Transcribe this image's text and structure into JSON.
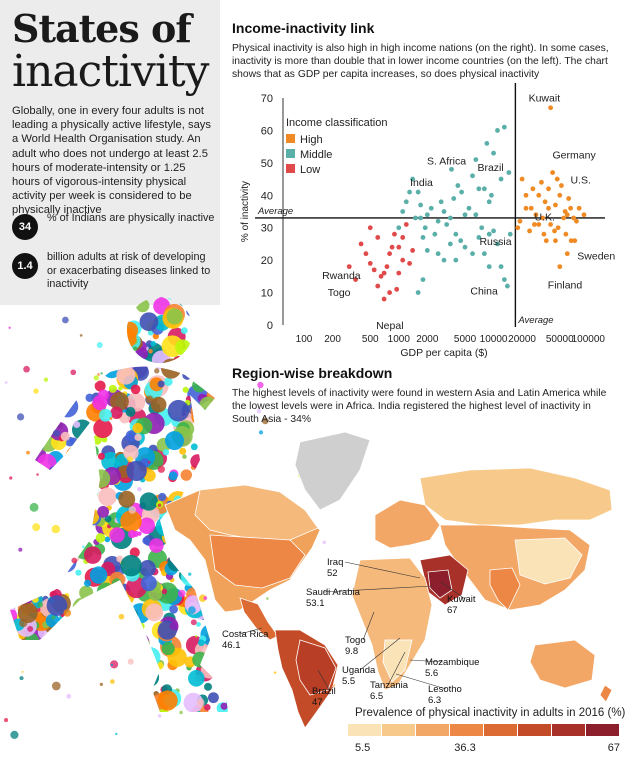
{
  "header": {
    "title_line1": "States of",
    "title_line2": "inactivity"
  },
  "intro": "Globally, one in every four adults is not leading a physically active lifestyle, says a World Health Organisation study. An adult who does not undergo at least 2.5 hours of moderate-intensity or 1.25 hours of vigorous-intensity physical activity per week is considered to be physically inactive",
  "stats": [
    {
      "value": "34",
      "text": "% of Indians are physically inactive"
    },
    {
      "value": "1.4",
      "text": "billion adults at risk of developing or exacerbating diseases linked to inactivity"
    }
  ],
  "income": {
    "title": "Income-inactivity link",
    "subtitle": "Physical inactivity is also high in high income nations (on the right). In some cases, inactivity is more than double that in lower income countries (on the left). The chart shows that as GDP per capita increases, so does physical inactivity"
  },
  "region": {
    "title": "Region-wise breakdown",
    "subtitle": "The highest levels of inactivity were found in western Asia and Latin America while the lowest levels were in Africa. India registered the highest level of inactivity in South Asia - 34%",
    "legend_title": "Prevalence of physical inactivity in adults in 2016 (%)",
    "legend_ticks": [
      "5.5",
      "36.3",
      "67"
    ],
    "legend_colors": [
      "#fbe3b8",
      "#f7c98b",
      "#f3a766",
      "#ec8746",
      "#dc6a33",
      "#c44b27",
      "#a8322a",
      "#8c1f2b"
    ],
    "callouts": [
      {
        "name": "Iraq",
        "value": "52"
      },
      {
        "name": "Saudi Arabia",
        "value": "53.1"
      },
      {
        "name": "Kuwait",
        "value": "67"
      },
      {
        "name": "Costa Rica",
        "value": "46.1"
      },
      {
        "name": "Togo",
        "value": "9.8"
      },
      {
        "name": "Uganda",
        "value": "5.5"
      },
      {
        "name": "Tanzania",
        "value": "6.5"
      },
      {
        "name": "Lesotho",
        "value": "6.3"
      },
      {
        "name": "Mozambique",
        "value": "5.6"
      },
      {
        "name": "Brazil",
        "value": "47"
      }
    ]
  },
  "chart_data": {
    "type": "scatter",
    "xlabel": "GDP per capita ($)",
    "ylabel": "% of inactivity",
    "x_scale": "log",
    "xlim": [
      60,
      150000
    ],
    "ylim": [
      0,
      70
    ],
    "xticks": [
      100,
      200,
      500,
      1000,
      2000,
      5000,
      10000,
      20000,
      50000,
      100000
    ],
    "yticks": [
      0,
      10,
      20,
      30,
      40,
      50,
      60,
      70
    ],
    "average_y": 33,
    "average_x": 17000,
    "average_label": "Average",
    "legend_title": "Income classification",
    "legend_position": "top-left",
    "series": [
      {
        "name": "High",
        "color": "#f08a24",
        "points": [
          [
            40000,
            67
          ],
          [
            20000,
            45
          ],
          [
            22000,
            40
          ],
          [
            25000,
            36
          ],
          [
            28000,
            34
          ],
          [
            30000,
            31
          ],
          [
            32000,
            44
          ],
          [
            35000,
            38
          ],
          [
            38000,
            42
          ],
          [
            40000,
            31
          ],
          [
            42000,
            47
          ],
          [
            45000,
            37
          ],
          [
            47000,
            45
          ],
          [
            50000,
            40
          ],
          [
            52000,
            43
          ],
          [
            55000,
            33
          ],
          [
            57000,
            35
          ],
          [
            60000,
            34
          ],
          [
            62000,
            39
          ],
          [
            65000,
            36
          ],
          [
            70000,
            33
          ],
          [
            75000,
            32
          ],
          [
            80000,
            36
          ],
          [
            90000,
            34
          ],
          [
            18000,
            30
          ],
          [
            19000,
            32
          ],
          [
            24000,
            29
          ],
          [
            27000,
            31
          ],
          [
            30000,
            40
          ],
          [
            34000,
            28
          ],
          [
            36000,
            26
          ],
          [
            44000,
            29
          ],
          [
            48000,
            30
          ],
          [
            58000,
            28
          ],
          [
            66000,
            26
          ],
          [
            72000,
            26
          ],
          [
            50000,
            18
          ],
          [
            60000,
            22
          ],
          [
            22000,
            36
          ],
          [
            26000,
            42
          ],
          [
            33000,
            33
          ],
          [
            38000,
            36
          ],
          [
            45000,
            26
          ]
        ]
      },
      {
        "name": "Middle",
        "color": "#5aafa9",
        "points": [
          [
            12000,
            45
          ],
          [
            10000,
            53
          ],
          [
            11000,
            60
          ],
          [
            13000,
            61
          ],
          [
            14500,
            47
          ],
          [
            8500,
            56
          ],
          [
            9000,
            38
          ],
          [
            9500,
            40
          ],
          [
            8000,
            42
          ],
          [
            6500,
            51
          ],
          [
            6000,
            46
          ],
          [
            5500,
            36
          ],
          [
            5000,
            34
          ],
          [
            4600,
            41
          ],
          [
            4200,
            43
          ],
          [
            3800,
            39
          ],
          [
            3500,
            33
          ],
          [
            3200,
            31
          ],
          [
            3000,
            35
          ],
          [
            2800,
            38
          ],
          [
            2600,
            32
          ],
          [
            2400,
            28
          ],
          [
            2200,
            36
          ],
          [
            2000,
            34
          ],
          [
            1900,
            30
          ],
          [
            1800,
            27
          ],
          [
            1700,
            37
          ],
          [
            1500,
            33
          ],
          [
            1400,
            45
          ],
          [
            1300,
            41
          ],
          [
            1200,
            38
          ],
          [
            1100,
            35
          ],
          [
            1000,
            30
          ],
          [
            1600,
            41
          ],
          [
            4000,
            28
          ],
          [
            4500,
            26
          ],
          [
            5000,
            24
          ],
          [
            6000,
            22
          ],
          [
            7000,
            27
          ],
          [
            7500,
            30
          ],
          [
            8000,
            22
          ],
          [
            9000,
            18
          ],
          [
            10000,
            29
          ],
          [
            11000,
            25
          ],
          [
            12000,
            18
          ],
          [
            13000,
            14
          ],
          [
            15000,
            28
          ],
          [
            7000,
            42
          ],
          [
            6500,
            34
          ],
          [
            3500,
            25
          ],
          [
            3000,
            20
          ],
          [
            2600,
            22
          ],
          [
            2000,
            23
          ],
          [
            1800,
            14
          ],
          [
            1600,
            10
          ],
          [
            1700,
            33
          ],
          [
            3600,
            48
          ],
          [
            4000,
            20
          ],
          [
            9000,
            28
          ],
          [
            14000,
            12
          ]
        ]
      },
      {
        "name": "Low",
        "color": "#e04a4a",
        "points": [
          [
            300,
            18
          ],
          [
            350,
            14
          ],
          [
            400,
            25
          ],
          [
            450,
            22
          ],
          [
            500,
            19
          ],
          [
            550,
            17
          ],
          [
            600,
            12
          ],
          [
            650,
            15
          ],
          [
            700,
            16
          ],
          [
            750,
            18
          ],
          [
            700,
            8
          ],
          [
            800,
            22
          ],
          [
            900,
            28
          ],
          [
            1000,
            24
          ],
          [
            1100,
            27
          ],
          [
            1200,
            31
          ],
          [
            1100,
            20
          ],
          [
            1000,
            16
          ],
          [
            600,
            27
          ],
          [
            500,
            30
          ],
          [
            850,
            24
          ],
          [
            950,
            11
          ],
          [
            1300,
            19
          ],
          [
            1400,
            23
          ],
          [
            800,
            10
          ]
        ]
      }
    ],
    "labels": [
      {
        "text": "Kuwait",
        "x": 40000,
        "y": 67
      },
      {
        "text": "Brazil",
        "x": 11000,
        "y": 45
      },
      {
        "text": "S. Africa",
        "x": 5500,
        "y": 47
      },
      {
        "text": "India",
        "x": 1600,
        "y": 41
      },
      {
        "text": "Germany",
        "x": 44000,
        "y": 47
      },
      {
        "text": "U.S.",
        "x": 56000,
        "y": 43
      },
      {
        "text": "U.K.",
        "x": 38000,
        "y": 36
      },
      {
        "text": "Russia",
        "x": 11000,
        "y": 29
      },
      {
        "text": "Sweden",
        "x": 60000,
        "y": 22
      },
      {
        "text": "Finland",
        "x": 50000,
        "y": 18
      },
      {
        "text": "China",
        "x": 8000,
        "y": 18
      },
      {
        "text": "Rwanda",
        "x": 700,
        "y": 16
      },
      {
        "text": "Togo",
        "x": 600,
        "y": 12
      },
      {
        "text": "Nepal",
        "x": 700,
        "y": 8
      }
    ]
  }
}
